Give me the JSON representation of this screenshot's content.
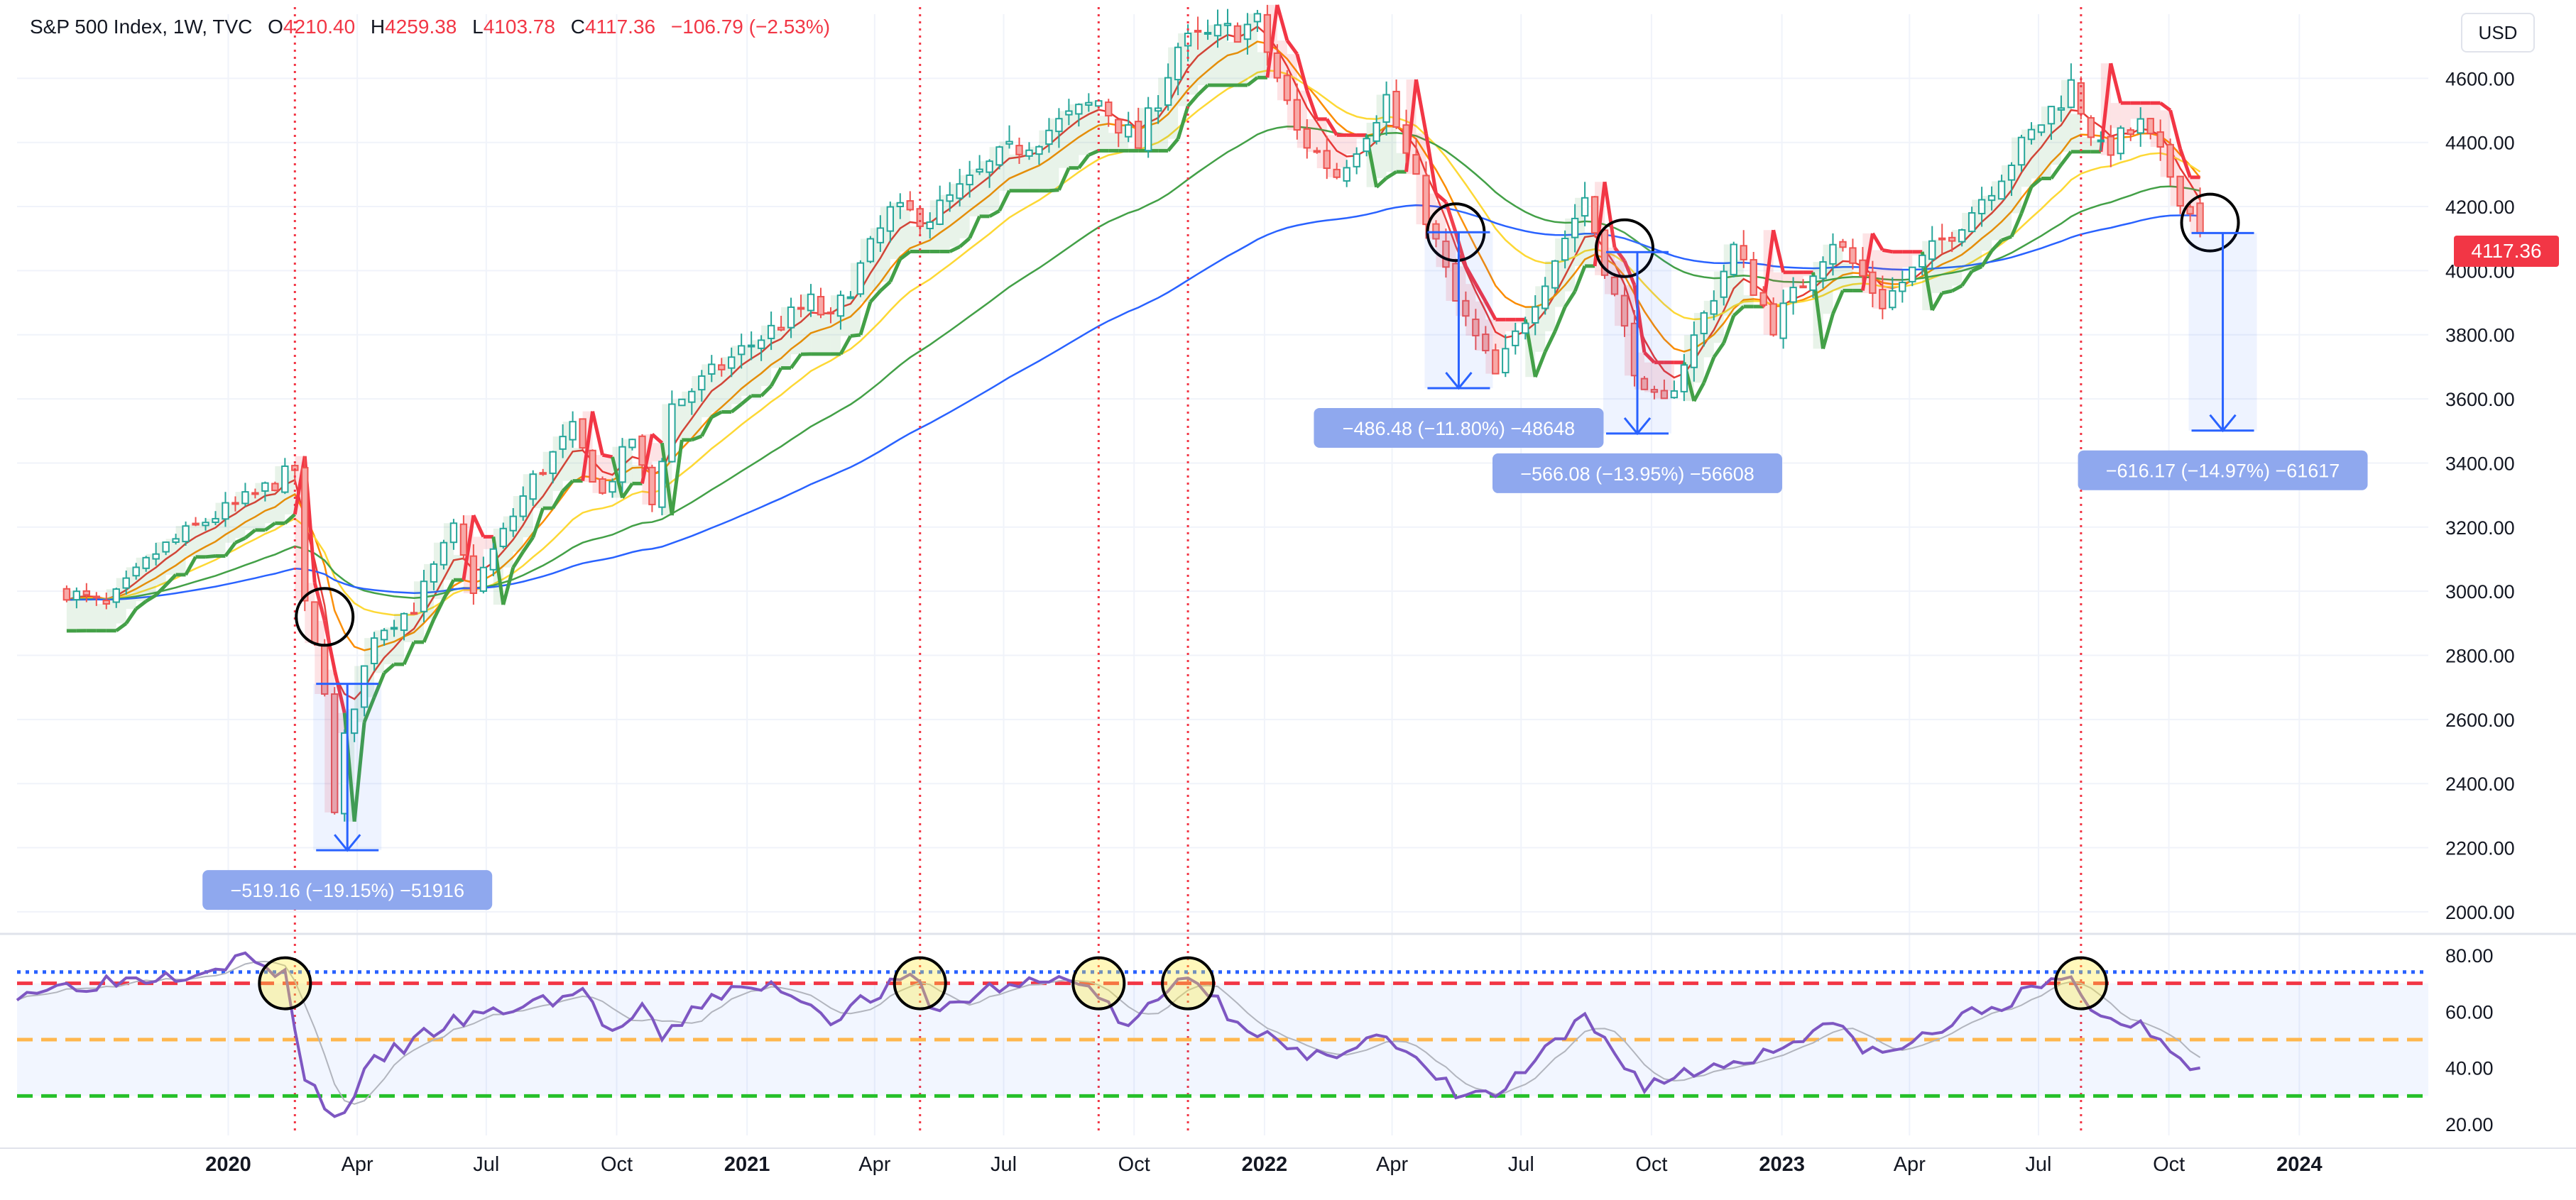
{
  "legend": {
    "symbol": "S&P 500 Index, 1W, TVC",
    "open_label": "O",
    "open": "4210.40",
    "high_label": "H",
    "high": "4259.38",
    "low_label": "L",
    "low": "4103.78",
    "close_label": "C",
    "close": "4117.36",
    "change": "−106.79 (−2.53%)"
  },
  "currency": "USD",
  "last_price_label": "4117.36",
  "colors": {
    "up": "#26a69a",
    "down": "#ef5350",
    "ema_red": "#e53935",
    "ema_orange": "#fb8c00",
    "ema_yellow": "#fdd835",
    "ema_green": "#43a047",
    "ema_blue": "#2962ff",
    "stop_up": "#43a047",
    "stop_down": "#f23645",
    "rsi": "#7e57c2",
    "signal": "#f23645",
    "measure": "#2962ff"
  },
  "chart_data": [
    {
      "type": "candlestick",
      "title": "S&P 500 Index, 1W, TVC",
      "x_ticks": [
        {
          "label": "2020",
          "date": "2020-01-01"
        },
        {
          "label": "Apr",
          "date": "2020-04-01"
        },
        {
          "label": "Jul",
          "date": "2020-07-01"
        },
        {
          "label": "Oct",
          "date": "2020-10-01"
        },
        {
          "label": "2021",
          "date": "2021-01-01"
        },
        {
          "label": "Apr",
          "date": "2021-04-01"
        },
        {
          "label": "Jul",
          "date": "2021-07-01"
        },
        {
          "label": "Oct",
          "date": "2021-10-01"
        },
        {
          "label": "2022",
          "date": "2022-01-01"
        },
        {
          "label": "Apr",
          "date": "2022-04-01"
        },
        {
          "label": "Jul",
          "date": "2022-07-01"
        },
        {
          "label": "Oct",
          "date": "2022-10-01"
        },
        {
          "label": "2023",
          "date": "2023-01-01"
        },
        {
          "label": "Apr",
          "date": "2023-04-01"
        },
        {
          "label": "Jul",
          "date": "2023-07-01"
        },
        {
          "label": "Oct",
          "date": "2023-10-01"
        },
        {
          "label": "2024",
          "date": "2024-01-01"
        }
      ],
      "x_range": [
        "2019-08-05",
        "2024-04-01"
      ],
      "y_ticks": [
        2000,
        2200,
        2400,
        2600,
        2800,
        3000,
        3200,
        3400,
        3600,
        3800,
        4000,
        4200,
        4400,
        4600
      ],
      "y_tick_labels": [
        "2000.00",
        "2200.00",
        "2400.00",
        "2600.00",
        "2800.00",
        "3000.00",
        "3200.00",
        "3400.00",
        "3600.00",
        "3800.00",
        "4000.00",
        "4200.00",
        "4400.00",
        "4600.00"
      ],
      "ylim": [
        1940,
        4800
      ],
      "close_anchors": [
        [
          "2019-09-09",
          3000
        ],
        [
          "2019-10-07",
          2950
        ],
        [
          "2019-11-11",
          3120
        ],
        [
          "2019-12-16",
          3220
        ],
        [
          "2020-01-20",
          3300
        ],
        [
          "2020-02-17",
          3380
        ],
        [
          "2020-02-24",
          2950
        ],
        [
          "2020-03-09",
          2700
        ],
        [
          "2020-03-16",
          2300
        ],
        [
          "2020-03-23",
          2540
        ],
        [
          "2020-04-13",
          2870
        ],
        [
          "2020-05-11",
          2950
        ],
        [
          "2020-06-08",
          3190
        ],
        [
          "2020-06-22",
          3010
        ],
        [
          "2020-08-03",
          3350
        ],
        [
          "2020-08-31",
          3500
        ],
        [
          "2020-09-21",
          3300
        ],
        [
          "2020-10-12",
          3480
        ],
        [
          "2020-10-26",
          3270
        ],
        [
          "2020-11-09",
          3580
        ],
        [
          "2020-12-28",
          3750
        ],
        [
          "2021-02-15",
          3900
        ],
        [
          "2021-03-01",
          3840
        ],
        [
          "2021-04-12",
          4180
        ],
        [
          "2021-05-10",
          4170
        ],
        [
          "2021-06-28",
          4350
        ],
        [
          "2021-09-06",
          4530
        ],
        [
          "2021-10-04",
          4390
        ],
        [
          "2021-11-01",
          4700
        ],
        [
          "2021-12-27",
          4770
        ],
        [
          "2022-01-24",
          4430
        ],
        [
          "2022-02-21",
          4300
        ],
        [
          "2022-03-28",
          4540
        ],
        [
          "2022-05-16",
          3900
        ],
        [
          "2022-06-13",
          3670
        ],
        [
          "2022-08-15",
          4230
        ],
        [
          "2022-09-26",
          3600
        ],
        [
          "2022-10-10",
          3580
        ],
        [
          "2022-11-28",
          4070
        ],
        [
          "2022-12-26",
          3830
        ],
        [
          "2023-02-06",
          4100
        ],
        [
          "2023-03-13",
          3900
        ],
        [
          "2023-05-15",
          4190
        ],
        [
          "2023-07-24",
          4580
        ],
        [
          "2023-08-14",
          4370
        ],
        [
          "2023-09-11",
          4450
        ],
        [
          "2023-10-02",
          4300
        ],
        [
          "2023-10-23",
          4117.36
        ]
      ],
      "last_bar": {
        "date": "2023-10-23",
        "open": 4210.4,
        "high": 4259.38,
        "low": 4103.78,
        "close": 4117.36
      },
      "moving_averages": [
        {
          "color": "ema_red",
          "length_weeks": 5
        },
        {
          "color": "ema_orange",
          "length_weeks": 10
        },
        {
          "color": "ema_yellow",
          "length_weeks": 20
        },
        {
          "color": "ema_green",
          "length_weeks": 40
        },
        {
          "color": "ema_blue",
          "length_weeks": 80
        }
      ],
      "vertical_markers": [
        "2020-02-17",
        "2021-05-03",
        "2021-09-06",
        "2021-11-08",
        "2023-07-31"
      ],
      "circles": [
        {
          "date": "2020-03-09",
          "price": 2920
        },
        {
          "date": "2022-05-16",
          "price": 4120
        },
        {
          "date": "2022-09-12",
          "price": 4070
        },
        {
          "date": "2023-10-30",
          "price": 4150
        }
      ],
      "measurements": [
        {
          "label": "−519.16 (−19.15%) −51916",
          "start_date": "2020-03-16",
          "from": 2711.16,
          "to": 2192.0
        },
        {
          "label": "−486.48 (−11.80%) −48648",
          "start_date": "2022-05-09",
          "from": 4120.0,
          "to": 3633.52
        },
        {
          "label": "−566.08 (−13.95%) −56608",
          "start_date": "2022-09-12",
          "from": 4058.0,
          "to": 3491.92
        },
        {
          "label": "−616.17 (−14.97%) −61617",
          "start_date": "2023-10-30",
          "from": 4117.36,
          "to": 3501.19
        }
      ]
    },
    {
      "type": "line",
      "series": [
        {
          "key": "rsi",
          "color": "rsi",
          "anchors": [
            [
              "2019-08-05",
              67
            ],
            [
              "2019-12-02",
              74
            ],
            [
              "2020-01-13",
              79
            ],
            [
              "2020-02-10",
              72
            ],
            [
              "2020-02-24",
              38
            ],
            [
              "2020-03-16",
              21
            ],
            [
              "2020-04-13",
              42
            ],
            [
              "2020-06-01",
              55
            ],
            [
              "2020-07-27",
              62
            ],
            [
              "2020-09-07",
              67
            ],
            [
              "2020-09-28",
              52
            ],
            [
              "2020-10-19",
              60
            ],
            [
              "2020-11-02",
              50
            ],
            [
              "2020-12-07",
              66
            ],
            [
              "2021-01-25",
              69
            ],
            [
              "2021-03-01",
              58
            ],
            [
              "2021-04-26",
              72
            ],
            [
              "2021-05-17",
              60
            ],
            [
              "2021-06-21",
              68
            ],
            [
              "2021-08-23",
              72
            ],
            [
              "2021-09-27",
              54
            ],
            [
              "2021-11-08",
              74
            ],
            [
              "2021-12-06",
              60
            ],
            [
              "2022-01-31",
              42
            ],
            [
              "2022-03-21",
              52
            ],
            [
              "2022-05-16",
              31
            ],
            [
              "2022-06-13",
              30
            ],
            [
              "2022-08-15",
              57
            ],
            [
              "2022-09-26",
              34
            ],
            [
              "2022-12-26",
              46
            ],
            [
              "2023-01-30",
              56
            ],
            [
              "2023-03-13",
              44
            ],
            [
              "2023-05-15",
              59
            ],
            [
              "2023-07-24",
              72
            ],
            [
              "2023-08-14",
              57
            ],
            [
              "2023-09-11",
              56
            ],
            [
              "2023-10-02",
              48
            ],
            [
              "2023-10-23",
              39
            ]
          ]
        },
        {
          "key": "rsi_ma",
          "color": "#b2b5be",
          "smoothing_weeks": 5
        }
      ],
      "y_ticks": [
        20,
        40,
        60,
        80
      ],
      "y_tick_labels": [
        "20.00",
        "40.00",
        "60.00",
        "80.00"
      ],
      "ylim": [
        16,
        84
      ],
      "levels": [
        {
          "value": 74,
          "color": "#2962ff",
          "style": "dotted"
        },
        {
          "value": 70,
          "color": "#f23645",
          "style": "dashed"
        },
        {
          "value": 50,
          "color": "#ffb74d",
          "style": "dashed"
        },
        {
          "value": 30,
          "color": "#26c02a",
          "style": "dashed"
        }
      ],
      "band": [
        30,
        70
      ],
      "circles": [
        "2020-02-10",
        "2021-05-03",
        "2021-09-06",
        "2021-11-08",
        "2023-07-31"
      ]
    }
  ]
}
